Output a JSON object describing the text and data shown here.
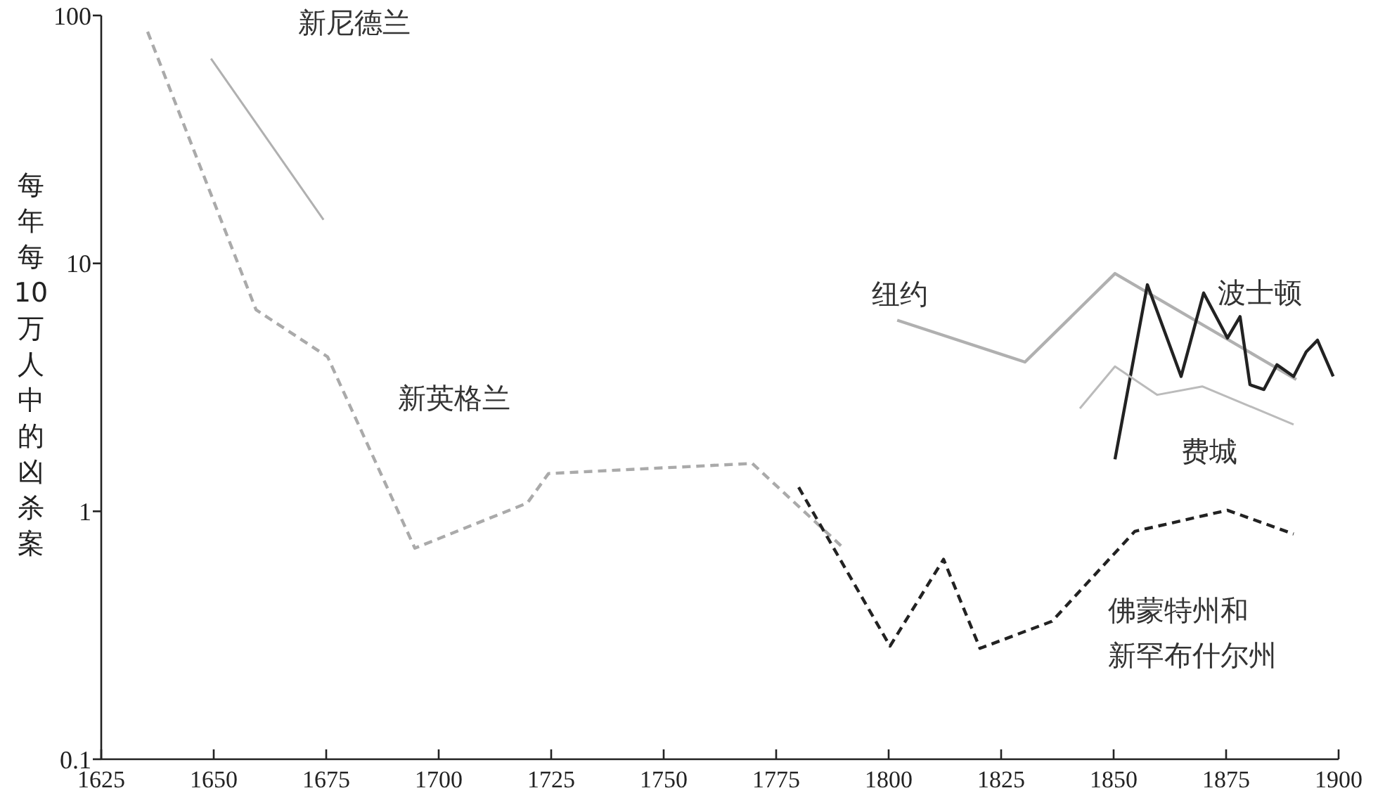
{
  "chart_data": {
    "type": "line",
    "ylabel": "每年每10万人中的凶杀案",
    "log": true,
    "xlim": [
      1625,
      1900
    ],
    "ylim": [
      0.1,
      100
    ],
    "xticks": [
      1625,
      1650,
      1675,
      1700,
      1725,
      1750,
      1775,
      1800,
      1825,
      1850,
      1875,
      1900
    ],
    "yticks": [
      0.1,
      1,
      10,
      100
    ],
    "grid": false,
    "series": [
      {
        "name": "新尼德兰",
        "color": "#b0b0b0",
        "line_style": "solid",
        "x": [
          1649.4,
          1674.4
        ],
        "values": [
          67,
          15
        ]
      },
      {
        "name": "新英格兰",
        "color": "#aaaaaa",
        "line_style": "dashed",
        "x": [
          1635.3,
          1659.4,
          1675.3,
          1694.7,
          1719.7,
          1724.4,
          1769.7,
          1790
        ],
        "values": [
          86,
          6.5,
          4.2,
          0.71,
          1.08,
          1.42,
          1.56,
          0.71
        ]
      },
      {
        "name": "纽约",
        "color": "#b0b0b0",
        "line_style": "solid",
        "x": [
          1801.9,
          1830.3,
          1850.3,
          1890.6
        ],
        "values": [
          5.9,
          4,
          9.1,
          3.4
        ]
      },
      {
        "name": "波士顿",
        "color": "#222222",
        "line_style": "solid",
        "x": [
          1850.3,
          1857.5,
          1865,
          1870,
          1875.3,
          1878.1,
          1880.3,
          1883.4,
          1886.3,
          1890,
          1892.8,
          1895.3,
          1898.8
        ],
        "values": [
          1.62,
          8.2,
          3.5,
          7.6,
          5,
          6.1,
          3.24,
          3.1,
          3.9,
          3.5,
          4.4,
          4.9,
          3.5
        ]
      },
      {
        "name": "费城",
        "color": "#bbbbbb",
        "line_style": "solid",
        "x": [
          1842.5,
          1850.3,
          1859.7,
          1869.7,
          1890
        ],
        "values": [
          2.6,
          3.84,
          2.95,
          3.19,
          2.24
        ]
      },
      {
        "name": "佛蒙特州和新罕布什尔州",
        "color": "#222222",
        "line_style": "dashed",
        "x": [
          1780,
          1800.3,
          1812.2,
          1820.3,
          1836.3,
          1854.7,
          1875.3,
          1890
        ],
        "values": [
          1.25,
          0.286,
          0.64,
          0.28,
          0.36,
          0.83,
          1.01,
          0.81
        ]
      }
    ]
  }
}
